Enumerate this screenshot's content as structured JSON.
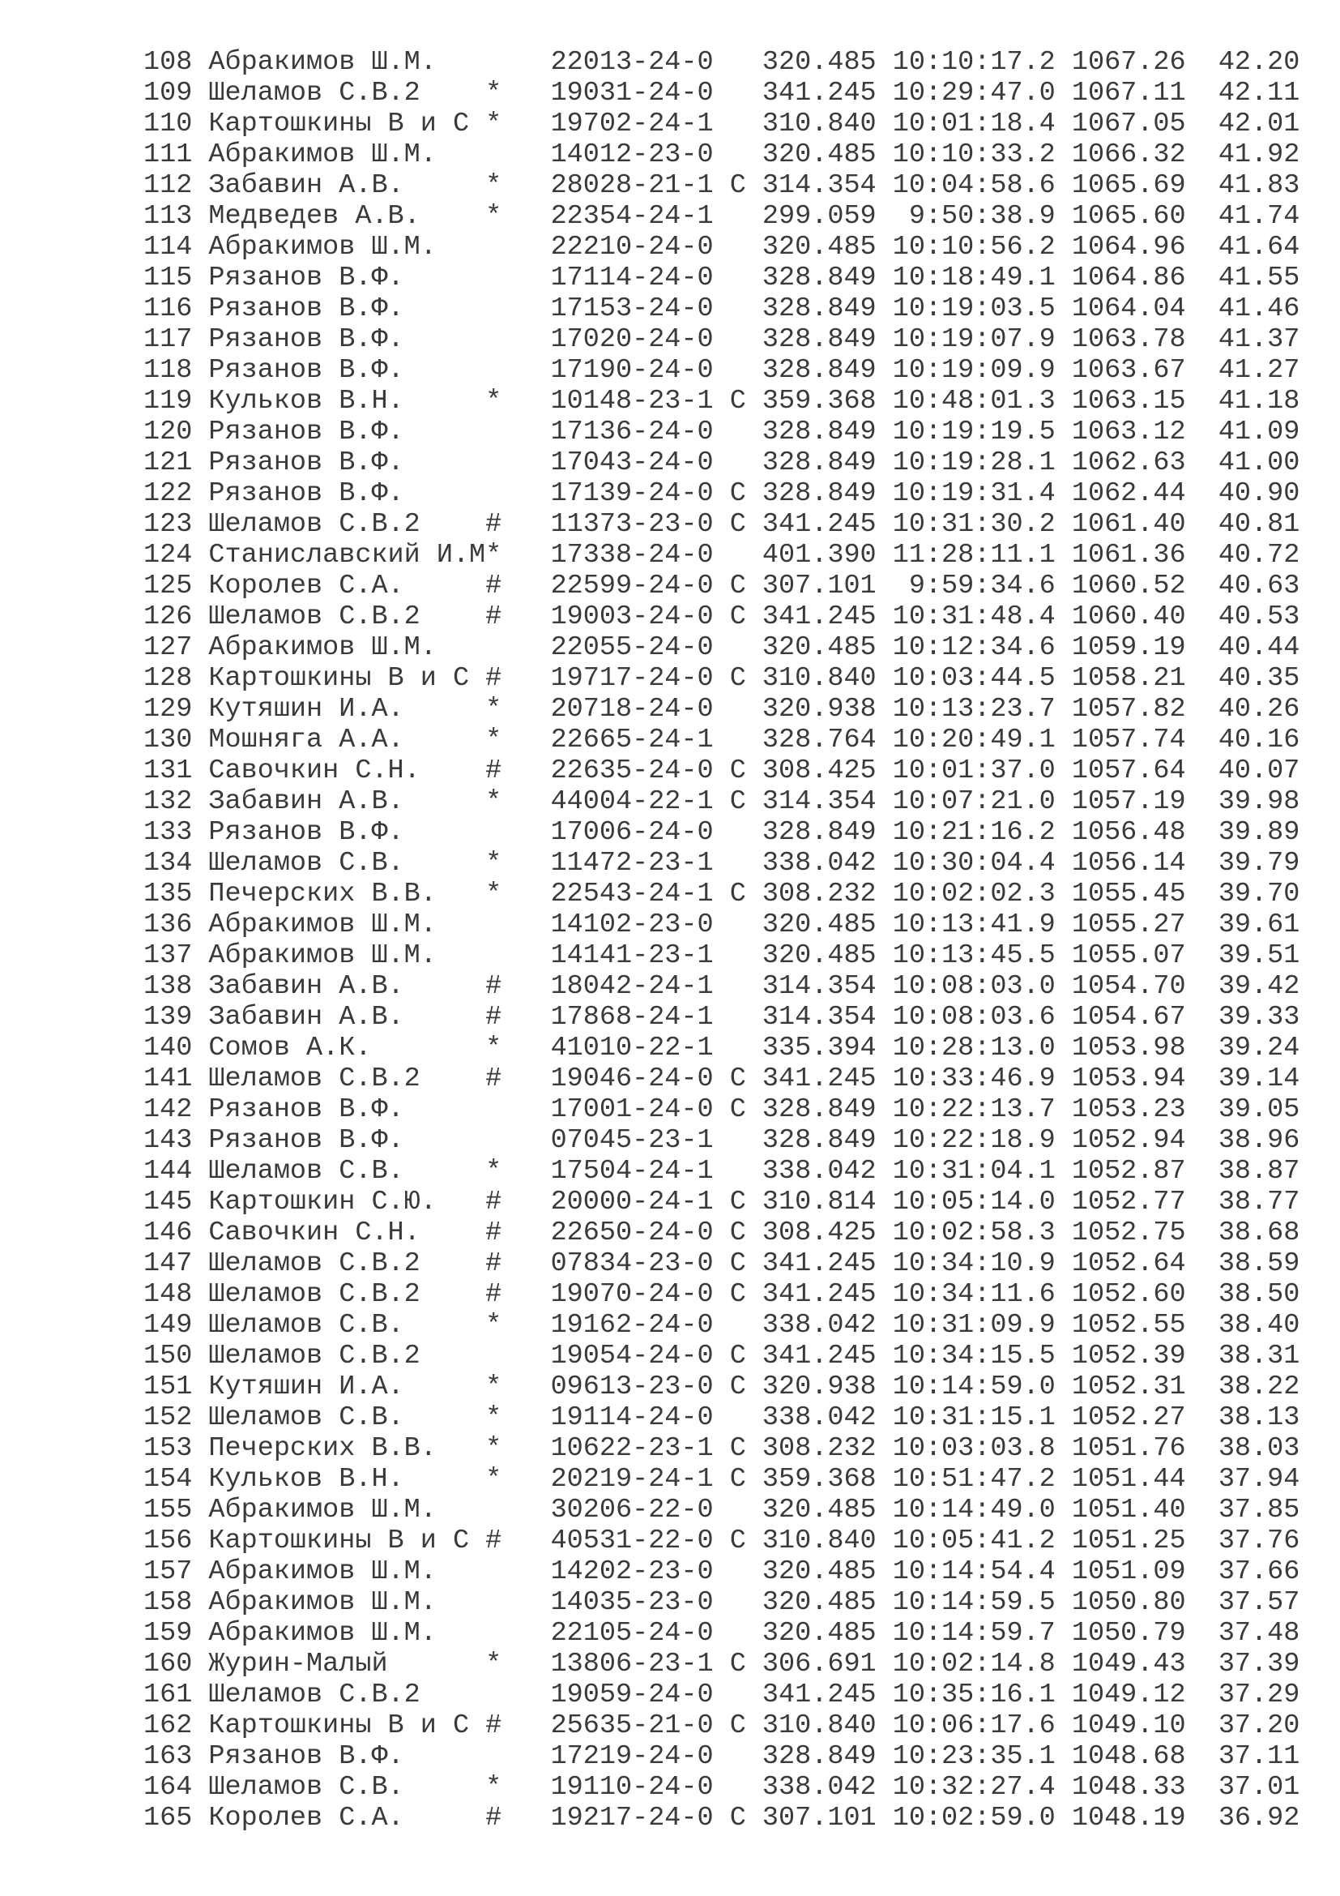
{
  "rows": [
    [
      "108",
      "Абракимов Ш.М.",
      "",
      "22013-24-0",
      "",
      "320.485",
      "10:10:17.2",
      "1067.26",
      "42.20"
    ],
    [
      "109",
      "Шеламов С.В.2",
      "*",
      "19031-24-0",
      "",
      "341.245",
      "10:29:47.0",
      "1067.11",
      "42.11"
    ],
    [
      "110",
      "Картошкины В и С",
      "*",
      "19702-24-1",
      "",
      "310.840",
      "10:01:18.4",
      "1067.05",
      "42.01"
    ],
    [
      "111",
      "Абракимов Ш.М.",
      "",
      "14012-23-0",
      "",
      "320.485",
      "10:10:33.2",
      "1066.32",
      "41.92"
    ],
    [
      "112",
      "Забавин А.В.",
      "*",
      "28028-21-1",
      "С",
      "314.354",
      "10:04:58.6",
      "1065.69",
      "41.83"
    ],
    [
      "113",
      "Медведев А.В.",
      "*",
      "22354-24-1",
      "",
      "299.059",
      "9:50:38.9",
      "1065.60",
      "41.74"
    ],
    [
      "114",
      "Абракимов Ш.М.",
      "",
      "22210-24-0",
      "",
      "320.485",
      "10:10:56.2",
      "1064.96",
      "41.64"
    ],
    [
      "115",
      "Рязанов В.Ф.",
      "",
      "17114-24-0",
      "",
      "328.849",
      "10:18:49.1",
      "1064.86",
      "41.55"
    ],
    [
      "116",
      "Рязанов В.Ф.",
      "",
      "17153-24-0",
      "",
      "328.849",
      "10:19:03.5",
      "1064.04",
      "41.46"
    ],
    [
      "117",
      "Рязанов В.Ф.",
      "",
      "17020-24-0",
      "",
      "328.849",
      "10:19:07.9",
      "1063.78",
      "41.37"
    ],
    [
      "118",
      "Рязанов В.Ф.",
      "",
      "17190-24-0",
      "",
      "328.849",
      "10:19:09.9",
      "1063.67",
      "41.27"
    ],
    [
      "119",
      "Кульков В.Н.",
      "*",
      "10148-23-1",
      "С",
      "359.368",
      "10:48:01.3",
      "1063.15",
      "41.18"
    ],
    [
      "120",
      "Рязанов В.Ф.",
      "",
      "17136-24-0",
      "",
      "328.849",
      "10:19:19.5",
      "1063.12",
      "41.09"
    ],
    [
      "121",
      "Рязанов В.Ф.",
      "",
      "17043-24-0",
      "",
      "328.849",
      "10:19:28.1",
      "1062.63",
      "41.00"
    ],
    [
      "122",
      "Рязанов В.Ф.",
      "",
      "17139-24-0",
      "С",
      "328.849",
      "10:19:31.4",
      "1062.44",
      "40.90"
    ],
    [
      "123",
      "Шеламов С.В.2",
      "#",
      "11373-23-0",
      "С",
      "341.245",
      "10:31:30.2",
      "1061.40",
      "40.81"
    ],
    [
      "124",
      "Станиславский И.М",
      "*",
      "17338-24-0",
      "",
      "401.390",
      "11:28:11.1",
      "1061.36",
      "40.72"
    ],
    [
      "125",
      "Королев С.А.",
      "#",
      "22599-24-0",
      "С",
      "307.101",
      "9:59:34.6",
      "1060.52",
      "40.63"
    ],
    [
      "126",
      "Шеламов С.В.2",
      "#",
      "19003-24-0",
      "С",
      "341.245",
      "10:31:48.4",
      "1060.40",
      "40.53"
    ],
    [
      "127",
      "Абракимов Ш.М.",
      "",
      "22055-24-0",
      "",
      "320.485",
      "10:12:34.6",
      "1059.19",
      "40.44"
    ],
    [
      "128",
      "Картошкины В и С",
      "#",
      "19717-24-0",
      "С",
      "310.840",
      "10:03:44.5",
      "1058.21",
      "40.35"
    ],
    [
      "129",
      "Кутяшин И.А.",
      "*",
      "20718-24-0",
      "",
      "320.938",
      "10:13:23.7",
      "1057.82",
      "40.26"
    ],
    [
      "130",
      "Мошняга А.А.",
      "*",
      "22665-24-1",
      "",
      "328.764",
      "10:20:49.1",
      "1057.74",
      "40.16"
    ],
    [
      "131",
      "Савочкин С.Н.",
      "#",
      "22635-24-0",
      "С",
      "308.425",
      "10:01:37.0",
      "1057.64",
      "40.07"
    ],
    [
      "132",
      "Забавин А.В.",
      "*",
      "44004-22-1",
      "С",
      "314.354",
      "10:07:21.0",
      "1057.19",
      "39.98"
    ],
    [
      "133",
      "Рязанов В.Ф.",
      "",
      "17006-24-0",
      "",
      "328.849",
      "10:21:16.2",
      "1056.48",
      "39.89"
    ],
    [
      "134",
      "Шеламов С.В.",
      "*",
      "11472-23-1",
      "",
      "338.042",
      "10:30:04.4",
      "1056.14",
      "39.79"
    ],
    [
      "135",
      "Печерских В.В.",
      "*",
      "22543-24-1",
      "С",
      "308.232",
      "10:02:02.3",
      "1055.45",
      "39.70"
    ],
    [
      "136",
      "Абракимов Ш.М.",
      "",
      "14102-23-0",
      "",
      "320.485",
      "10:13:41.9",
      "1055.27",
      "39.61"
    ],
    [
      "137",
      "Абракимов Ш.М.",
      "",
      "14141-23-1",
      "",
      "320.485",
      "10:13:45.5",
      "1055.07",
      "39.51"
    ],
    [
      "138",
      "Забавин А.В.",
      "#",
      "18042-24-1",
      "",
      "314.354",
      "10:08:03.0",
      "1054.70",
      "39.42"
    ],
    [
      "139",
      "Забавин А.В.",
      "#",
      "17868-24-1",
      "",
      "314.354",
      "10:08:03.6",
      "1054.67",
      "39.33"
    ],
    [
      "140",
      "Сомов А.К.",
      "*",
      "41010-22-1",
      "",
      "335.394",
      "10:28:13.0",
      "1053.98",
      "39.24"
    ],
    [
      "141",
      "Шеламов С.В.2",
      "#",
      "19046-24-0",
      "С",
      "341.245",
      "10:33:46.9",
      "1053.94",
      "39.14"
    ],
    [
      "142",
      "Рязанов В.Ф.",
      "",
      "17001-24-0",
      "С",
      "328.849",
      "10:22:13.7",
      "1053.23",
      "39.05"
    ],
    [
      "143",
      "Рязанов В.Ф.",
      "",
      "07045-23-1",
      "",
      "328.849",
      "10:22:18.9",
      "1052.94",
      "38.96"
    ],
    [
      "144",
      "Шеламов С.В.",
      "*",
      "17504-24-1",
      "",
      "338.042",
      "10:31:04.1",
      "1052.87",
      "38.87"
    ],
    [
      "145",
      "Картошкин С.Ю.",
      "#",
      "20000-24-1",
      "С",
      "310.814",
      "10:05:14.0",
      "1052.77",
      "38.77"
    ],
    [
      "146",
      "Савочкин С.Н.",
      "#",
      "22650-24-0",
      "С",
      "308.425",
      "10:02:58.3",
      "1052.75",
      "38.68"
    ],
    [
      "147",
      "Шеламов С.В.2",
      "#",
      "07834-23-0",
      "С",
      "341.245",
      "10:34:10.9",
      "1052.64",
      "38.59"
    ],
    [
      "148",
      "Шеламов С.В.2",
      "#",
      "19070-24-0",
      "С",
      "341.245",
      "10:34:11.6",
      "1052.60",
      "38.50"
    ],
    [
      "149",
      "Шеламов С.В.",
      "*",
      "19162-24-0",
      "",
      "338.042",
      "10:31:09.9",
      "1052.55",
      "38.40"
    ],
    [
      "150",
      "Шеламов С.В.2",
      "",
      "19054-24-0",
      "С",
      "341.245",
      "10:34:15.5",
      "1052.39",
      "38.31"
    ],
    [
      "151",
      "Кутяшин И.А.",
      "*",
      "09613-23-0",
      "С",
      "320.938",
      "10:14:59.0",
      "1052.31",
      "38.22"
    ],
    [
      "152",
      "Шеламов С.В.",
      "*",
      "19114-24-0",
      "",
      "338.042",
      "10:31:15.1",
      "1052.27",
      "38.13"
    ],
    [
      "153",
      "Печерских В.В.",
      "*",
      "10622-23-1",
      "С",
      "308.232",
      "10:03:03.8",
      "1051.76",
      "38.03"
    ],
    [
      "154",
      "Кульков В.Н.",
      "*",
      "20219-24-1",
      "С",
      "359.368",
      "10:51:47.2",
      "1051.44",
      "37.94"
    ],
    [
      "155",
      "Абракимов Ш.М.",
      "",
      "30206-22-0",
      "",
      "320.485",
      "10:14:49.0",
      "1051.40",
      "37.85"
    ],
    [
      "156",
      "Картошкины В и С",
      "#",
      "40531-22-0",
      "С",
      "310.840",
      "10:05:41.2",
      "1051.25",
      "37.76"
    ],
    [
      "157",
      "Абракимов Ш.М.",
      "",
      "14202-23-0",
      "",
      "320.485",
      "10:14:54.4",
      "1051.09",
      "37.66"
    ],
    [
      "158",
      "Абракимов Ш.М.",
      "",
      "14035-23-0",
      "",
      "320.485",
      "10:14:59.5",
      "1050.80",
      "37.57"
    ],
    [
      "159",
      "Абракимов Ш.М.",
      "",
      "22105-24-0",
      "",
      "320.485",
      "10:14:59.7",
      "1050.79",
      "37.48"
    ],
    [
      "160",
      "Журин-Малый",
      "*",
      "13806-23-1",
      "С",
      "306.691",
      "10:02:14.8",
      "1049.43",
      "37.39"
    ],
    [
      "161",
      "Шеламов С.В.2",
      "",
      "19059-24-0",
      "",
      "341.245",
      "10:35:16.1",
      "1049.12",
      "37.29"
    ],
    [
      "162",
      "Картошкины В и С",
      "#",
      "25635-21-0",
      "С",
      "310.840",
      "10:06:17.6",
      "1049.10",
      "37.20"
    ],
    [
      "163",
      "Рязанов В.Ф.",
      "",
      "17219-24-0",
      "",
      "328.849",
      "10:23:35.1",
      "1048.68",
      "37.11"
    ],
    [
      "164",
      "Шеламов С.В.",
      "*",
      "19110-24-0",
      "",
      "338.042",
      "10:32:27.4",
      "1048.33",
      "37.01"
    ],
    [
      "165",
      "Королев С.А.",
      "#",
      "19217-24-0",
      "С",
      "307.101",
      "10:02:59.0",
      "1048.19",
      "36.92"
    ]
  ]
}
